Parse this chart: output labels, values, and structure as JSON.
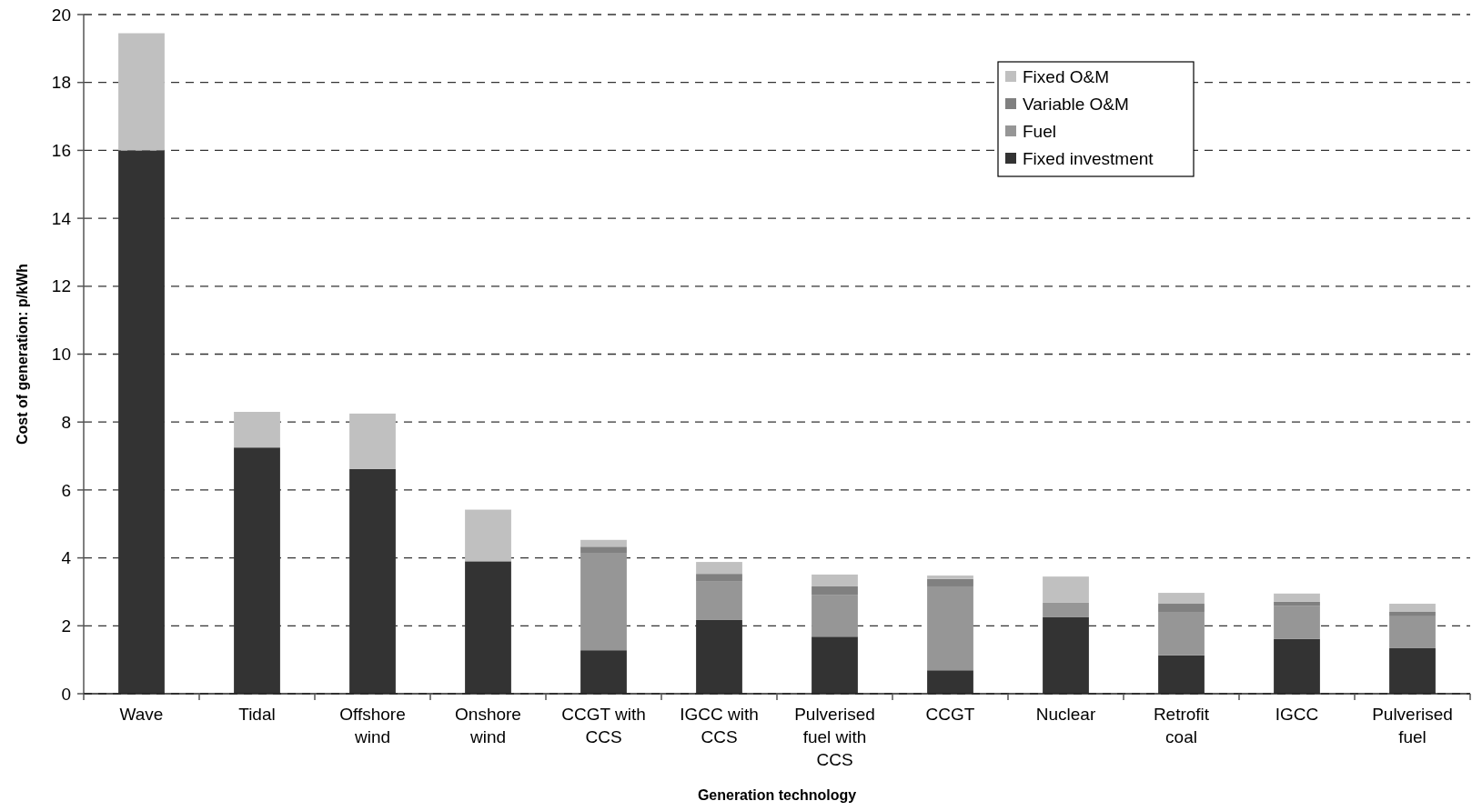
{
  "chart_data": {
    "type": "bar",
    "stacked": true,
    "xlabel": "Generation technology",
    "ylabel": "Cost of generation: p/kWh",
    "categories": [
      "Wave",
      "Tidal",
      "Offshore wind",
      "Onshore wind",
      "CCGT with CCS",
      "IGCC with CCS",
      "Pulverised fuel with CCS",
      "CCGT",
      "Nuclear",
      "Retrofit coal",
      "IGCC",
      "Pulverised fuel"
    ],
    "series": [
      {
        "name": "Fixed investment",
        "color": "#333333",
        "values": [
          16,
          7.25,
          6.62,
          3.9,
          1.28,
          2.17,
          1.68,
          0.69,
          2.25,
          1.13,
          1.61,
          1.34
        ]
      },
      {
        "name": "Fuel",
        "color": "#969696",
        "values": [
          0,
          0,
          0,
          0,
          2.87,
          1.13,
          1.22,
          2.47,
          0.43,
          1.28,
          0.97,
          0.94
        ]
      },
      {
        "name": "Variable O&M",
        "color": "#808080",
        "values": [
          0,
          0,
          0,
          0,
          0.18,
          0.23,
          0.26,
          0.22,
          0,
          0.24,
          0.13,
          0.13
        ]
      },
      {
        "name": "Fixed O&M",
        "color": "#c0c0c0",
        "values": [
          3.45,
          1.05,
          1.63,
          1.52,
          0.2,
          0.35,
          0.35,
          0.1,
          0.77,
          0.32,
          0.24,
          0.24
        ]
      }
    ],
    "ylim": [
      0,
      20
    ],
    "yticks": [
      0,
      2,
      4,
      6,
      8,
      10,
      12,
      14,
      16,
      18,
      20
    ],
    "grid": "y",
    "legend": "top right"
  }
}
